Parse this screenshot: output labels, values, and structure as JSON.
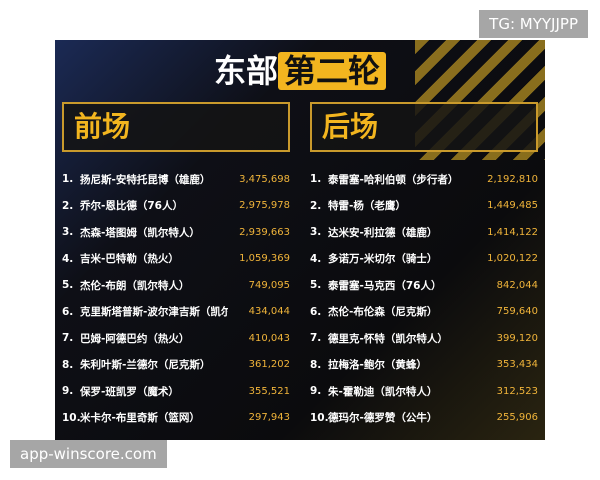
{
  "watermark_top": "TG: MYYJJPP",
  "title": {
    "part1": "东部",
    "part2": "第二轮"
  },
  "sections": [
    {
      "header": "前场",
      "rows": [
        [
          "1.",
          "扬尼斯-安特托昆博（雄鹿）",
          "3,475,698"
        ],
        [
          "2.",
          "乔尔-恩比德（76人）",
          "2,975,978"
        ],
        [
          "3.",
          "杰森-塔图姆（凯尔特人）",
          "2,939,663"
        ],
        [
          "4.",
          "吉米-巴特勒（热火）",
          "1,059,369"
        ],
        [
          "5.",
          "杰伦-布朗（凯尔特人）",
          "749,095"
        ],
        [
          "6.",
          "克里斯塔普斯-波尔津吉斯（凯尔特人）",
          "434,044"
        ],
        [
          "7.",
          "巴姆-阿德巴约（热火）",
          "410,043"
        ],
        [
          "8.",
          "朱利叶斯-兰德尔（尼克斯）",
          "361,202"
        ],
        [
          "9.",
          "保罗-班凯罗（魔术）",
          "355,521"
        ],
        [
          "10.",
          "米卡尔-布里奇斯（篮网）",
          "297,943"
        ]
      ]
    },
    {
      "header": "后场",
      "rows": [
        [
          "1.",
          "泰雷塞-哈利伯顿（步行者）",
          "2,192,810"
        ],
        [
          "2.",
          "特雷-杨（老鹰）",
          "1,449,485"
        ],
        [
          "3.",
          "达米安-利拉德（雄鹿）",
          "1,414,122"
        ],
        [
          "4.",
          "多诺万-米切尔（骑士）",
          "1,020,122"
        ],
        [
          "5.",
          "泰雷塞-马克西（76人）",
          "842,044"
        ],
        [
          "6.",
          "杰伦-布伦森（尼克斯）",
          "759,640"
        ],
        [
          "7.",
          "德里克-怀特（凯尔特人）",
          "399,120"
        ],
        [
          "8.",
          "拉梅洛-鲍尔（黄蜂）",
          "353,434"
        ],
        [
          "9.",
          "朱-霍勒迪（凯尔特人）",
          "312,523"
        ],
        [
          "10.",
          "德玛尔-德罗赞（公牛）",
          "255,906"
        ]
      ]
    }
  ],
  "watermark_bottom": "app-winscore.com"
}
